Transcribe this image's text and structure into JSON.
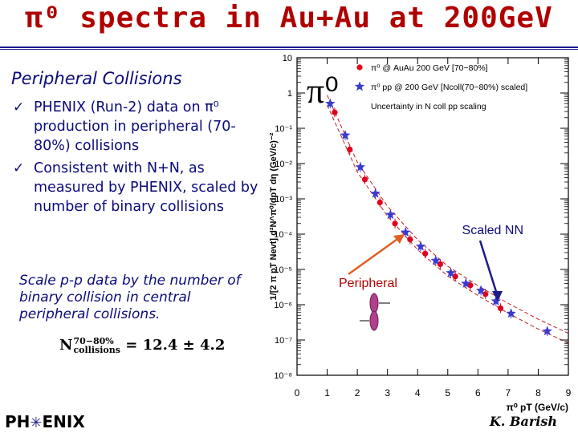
{
  "title": "π⁰ spectra in Au+Au at 200GeV",
  "subhead": "Peripheral Collisions",
  "bullets": [
    "PHENIX (Run-2) data on π⁰ production in peripheral (70-80%) collisions",
    "Consistent with N+N, as measured by PHENIX, scaled by number of binary collisions"
  ],
  "check_glyph": "✓",
  "note": "Scale p-p data by the number of binary collision in central peripheral collisions.",
  "ncoll_formula": {
    "symbol": "N",
    "sup": "70−80%",
    "sub": "collisions",
    "value": "= 12.4 ± 4.2"
  },
  "logo": {
    "left": "PH",
    "right": "ENIX"
  },
  "author": "K. Barish",
  "chart_data": {
    "type": "scatter",
    "ylabel": "1/[2 π pT Nevt] d²N^π⁰/dpT dη (GeV/c)⁻²",
    "xlabel": "π⁰ pT (GeV/c)",
    "x_ticks": [
      "0",
      "1",
      "2",
      "3",
      "4",
      "5",
      "6",
      "7",
      "8",
      "9"
    ],
    "y_ticks": [
      "10",
      "1",
      "10⁻¹",
      "10⁻²",
      "10⁻³",
      "10⁻⁴",
      "10⁻⁵",
      "10⁻⁶",
      "10⁻⁷",
      "10⁻⁸"
    ],
    "xlim": [
      0,
      9
    ],
    "ylog_exp_range": [
      -8,
      1
    ],
    "big_label": "π⁰",
    "legend": [
      {
        "marker": "circle",
        "color": "#e0001b",
        "text": "π⁰ @ AuAu 200 GeV [70−80%]"
      },
      {
        "marker": "star",
        "color": "#3a3ad0",
        "text": "π⁰ pp @ 200 GeV [Ncoll(70−80%) scaled]"
      },
      {
        "marker": "none",
        "color": "#000000",
        "text": "Uncertainty in N coll pp scaling"
      }
    ],
    "series": [
      {
        "name": "π⁰ @ AuAu 200 GeV [70−80%]",
        "marker": "circle",
        "color": "#e0001b",
        "x": [
          1.25,
          1.75,
          2.25,
          2.75,
          3.25,
          3.75,
          4.25,
          4.75,
          5.25,
          5.75,
          6.25,
          6.75
        ],
        "y": [
          -0.55,
          -1.6,
          -2.45,
          -3.1,
          -3.7,
          -4.15,
          -4.55,
          -4.85,
          -5.2,
          -5.45,
          -5.7,
          -6.1
        ]
      },
      {
        "name": "π⁰ pp @ 200 GeV [Ncoll(70−80%) scaled]",
        "marker": "star",
        "color": "#3a3ad0",
        "x": [
          1.1,
          1.6,
          2.1,
          2.6,
          3.1,
          3.6,
          4.1,
          4.6,
          5.1,
          5.6,
          6.1,
          6.6,
          7.1,
          8.3
        ],
        "y": [
          -0.3,
          -1.2,
          -2.1,
          -2.85,
          -3.45,
          -3.95,
          -4.35,
          -4.75,
          -5.1,
          -5.4,
          -5.6,
          -5.9,
          -6.25,
          -6.75
        ]
      }
    ],
    "band": {
      "x": [
        1.0,
        2.0,
        3.0,
        4.0,
        5.0,
        6.0,
        7.0,
        8.0,
        9.0
      ],
      "y_center": [
        -0.2,
        -2.1,
        -3.35,
        -4.3,
        -5.05,
        -5.6,
        -6.1,
        -6.55,
        -6.95
      ],
      "half_width": 0.14
    },
    "annotations": [
      {
        "text": "Scaled NN",
        "color": "#0a0a7a"
      },
      {
        "text": "Peripheral",
        "color": "#b00000"
      }
    ]
  }
}
